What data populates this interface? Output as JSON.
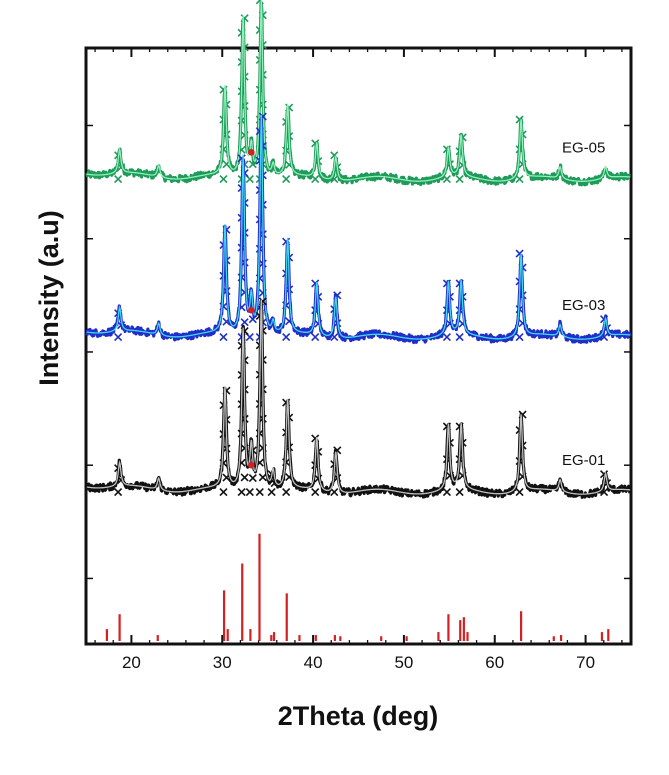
{
  "chart_data": {
    "type": "line",
    "title": "",
    "xlabel": "2Theta (deg)",
    "ylabel": "Intensity (a.u)",
    "xlim": [
      15,
      75
    ],
    "x_ticks": [
      20,
      30,
      40,
      50,
      60,
      70
    ],
    "grid": false,
    "legend": "none",
    "series": [
      {
        "name": "EG-05",
        "color": "#1f9a5a",
        "fit_color": "#8ff0b8",
        "marker": "x",
        "baseline": 0.78,
        "peaks": [
          {
            "x": 18.7,
            "h": 0.04
          },
          {
            "x": 23.0,
            "h": 0.02
          },
          {
            "x": 30.3,
            "h": 0.15
          },
          {
            "x": 32.3,
            "h": 0.27
          },
          {
            "x": 33.2,
            "h": 0.05
          },
          {
            "x": 34.3,
            "h": 0.3
          },
          {
            "x": 35.6,
            "h": 0.02
          },
          {
            "x": 37.2,
            "h": 0.12
          },
          {
            "x": 40.4,
            "h": 0.06
          },
          {
            "x": 42.5,
            "h": 0.04
          },
          {
            "x": 54.9,
            "h": 0.05
          },
          {
            "x": 56.3,
            "h": 0.07
          },
          {
            "x": 62.9,
            "h": 0.1
          },
          {
            "x": 67.2,
            "h": 0.02
          },
          {
            "x": 72.2,
            "h": 0.02
          }
        ]
      },
      {
        "name": "EG-03",
        "color": "#1f2fc8",
        "fit_color": "#3fd6f0",
        "marker": "x",
        "baseline": 0.515,
        "peaks": [
          {
            "x": 18.7,
            "h": 0.04
          },
          {
            "x": 23.0,
            "h": 0.02
          },
          {
            "x": 30.3,
            "h": 0.18
          },
          {
            "x": 32.3,
            "h": 0.3
          },
          {
            "x": 33.2,
            "h": 0.06
          },
          {
            "x": 34.3,
            "h": 0.37
          },
          {
            "x": 35.6,
            "h": 0.02
          },
          {
            "x": 37.2,
            "h": 0.16
          },
          {
            "x": 40.4,
            "h": 0.09
          },
          {
            "x": 42.5,
            "h": 0.07
          },
          {
            "x": 54.9,
            "h": 0.09
          },
          {
            "x": 56.3,
            "h": 0.09
          },
          {
            "x": 62.9,
            "h": 0.14
          },
          {
            "x": 67.2,
            "h": 0.02
          },
          {
            "x": 72.2,
            "h": 0.03
          }
        ]
      },
      {
        "name": "EG-01",
        "color": "#111111",
        "fit_color": "#bfbfbf",
        "marker": "x",
        "baseline": 0.255,
        "peaks": [
          {
            "x": 18.7,
            "h": 0.04
          },
          {
            "x": 23.0,
            "h": 0.02
          },
          {
            "x": 30.3,
            "h": 0.17
          },
          {
            "x": 32.3,
            "h": 0.27
          },
          {
            "x": 33.2,
            "h": 0.07
          },
          {
            "x": 34.3,
            "h": 0.32
          },
          {
            "x": 35.6,
            "h": 0.03
          },
          {
            "x": 37.2,
            "h": 0.15
          },
          {
            "x": 40.4,
            "h": 0.09
          },
          {
            "x": 42.5,
            "h": 0.07
          },
          {
            "x": 54.9,
            "h": 0.11
          },
          {
            "x": 56.3,
            "h": 0.11
          },
          {
            "x": 62.9,
            "h": 0.13
          },
          {
            "x": 67.2,
            "h": 0.02
          },
          {
            "x": 72.2,
            "h": 0.03
          }
        ]
      }
    ],
    "reference": {
      "color": "#d42020",
      "sticks": [
        {
          "x": 17.3,
          "h": 0.02
        },
        {
          "x": 18.7,
          "h": 0.045
        },
        {
          "x": 22.9,
          "h": 0.01
        },
        {
          "x": 30.2,
          "h": 0.085
        },
        {
          "x": 30.6,
          "h": 0.02
        },
        {
          "x": 32.2,
          "h": 0.13
        },
        {
          "x": 33.1,
          "h": 0.02
        },
        {
          "x": 34.1,
          "h": 0.18
        },
        {
          "x": 35.4,
          "h": 0.01
        },
        {
          "x": 35.7,
          "h": 0.015
        },
        {
          "x": 37.1,
          "h": 0.08
        },
        {
          "x": 38.5,
          "h": 0.01
        },
        {
          "x": 40.3,
          "h": 0.01
        },
        {
          "x": 42.4,
          "h": 0.01
        },
        {
          "x": 43.0,
          "h": 0.008
        },
        {
          "x": 47.5,
          "h": 0.008
        },
        {
          "x": 50.3,
          "h": 0.008
        },
        {
          "x": 53.8,
          "h": 0.015
        },
        {
          "x": 54.9,
          "h": 0.045
        },
        {
          "x": 56.2,
          "h": 0.035
        },
        {
          "x": 56.6,
          "h": 0.04
        },
        {
          "x": 57.0,
          "h": 0.015
        },
        {
          "x": 62.9,
          "h": 0.05
        },
        {
          "x": 66.5,
          "h": 0.008
        },
        {
          "x": 67.3,
          "h": 0.01
        },
        {
          "x": 71.8,
          "h": 0.015
        },
        {
          "x": 72.5,
          "h": 0.02
        }
      ]
    }
  }
}
